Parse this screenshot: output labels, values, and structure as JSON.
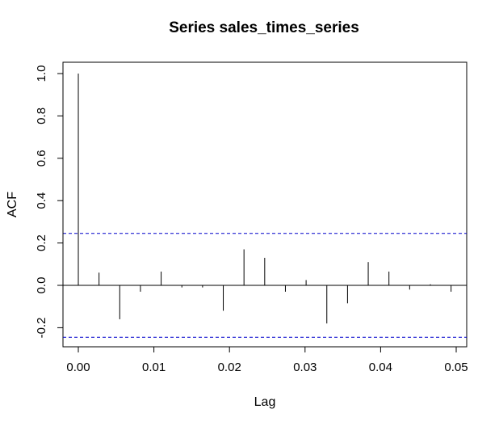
{
  "chart_data": {
    "type": "bar",
    "title": "Series  sales_times_series",
    "xlabel": "Lag",
    "ylabel": "ACF",
    "xlim": [
      0,
      0.05
    ],
    "ylim": [
      -0.29,
      1.05
    ],
    "x_ticks": [
      "0.00",
      "0.01",
      "0.02",
      "0.03",
      "0.04",
      "0.05"
    ],
    "y_ticks": [
      "-0.2",
      "0.0",
      "0.2",
      "0.4",
      "0.6",
      "0.8",
      "1.0"
    ],
    "confidence_band": [
      0.245,
      -0.245
    ],
    "confidence_color": "#0000cc",
    "lag": [
      0.0,
      0.00274,
      0.00548,
      0.00822,
      0.01096,
      0.0137,
      0.01644,
      0.01918,
      0.02192,
      0.02466,
      0.0274,
      0.03014,
      0.03288,
      0.03562,
      0.03836,
      0.0411,
      0.04384,
      0.04658,
      0.04932
    ],
    "acf": [
      1.0,
      0.06,
      -0.16,
      -0.03,
      0.065,
      -0.01,
      -0.01,
      -0.12,
      0.17,
      0.13,
      -0.03,
      0.025,
      -0.18,
      -0.085,
      0.11,
      0.065,
      -0.02,
      0.005,
      -0.03
    ],
    "grid": false
  }
}
